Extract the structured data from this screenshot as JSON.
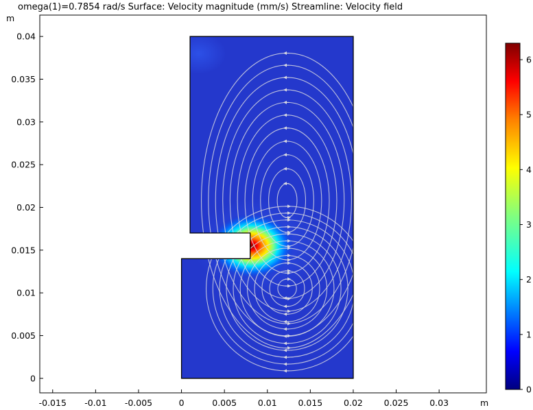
{
  "title": "omega(1)=0.7854 rad/s  Surface: Velocity magnitude (mm/s)  Streamline: Velocity field",
  "chart_data": {
    "type": "heatmap",
    "title": "omega(1)=0.7854 rad/s  Surface: Velocity magnitude (mm/s)  Streamline: Velocity field",
    "xlabel": "m",
    "ylabel": "m",
    "xlim": [
      -0.0165,
      0.0355
    ],
    "ylim": [
      -0.0017,
      0.0425
    ],
    "x_ticks": [
      "-0.015",
      "-0.01",
      "-0.005",
      "0",
      "0.005",
      "0.01",
      "0.015",
      "0.02",
      "0.025",
      "0.03"
    ],
    "x_tick_values": [
      -0.015,
      -0.01,
      -0.005,
      0,
      0.005,
      0.01,
      0.015,
      0.02,
      0.025,
      0.03
    ],
    "y_ticks": [
      "0",
      "0.005",
      "0.01",
      "0.015",
      "0.02",
      "0.025",
      "0.03",
      "0.035",
      "0.04"
    ],
    "y_tick_values": [
      0,
      0.005,
      0.01,
      0.015,
      0.02,
      0.025,
      0.03,
      0.035,
      0.04
    ],
    "domain_outline": [
      [
        0,
        0
      ],
      [
        0.02,
        0
      ],
      [
        0.02,
        0.04
      ],
      [
        0.001,
        0.04
      ],
      [
        0.001,
        0.017
      ],
      [
        0.008,
        0.017
      ],
      [
        0.008,
        0.014
      ],
      [
        0,
        0.014
      ]
    ],
    "vortex_centers": [
      [
        0.0123,
        0.0208
      ],
      [
        0.0123,
        0.0105
      ]
    ],
    "colorbar": {
      "ticks": [
        "0",
        "1",
        "2",
        "3",
        "4",
        "5",
        "6"
      ],
      "tick_values": [
        0,
        1,
        2,
        3,
        4,
        5,
        6
      ],
      "max": 6.3,
      "colormap": [
        "#00007f",
        "#0000ff",
        "#0080ff",
        "#00ffff",
        "#80ff80",
        "#ffff00",
        "#ff8000",
        "#ff0000",
        "#7f0000"
      ]
    }
  }
}
